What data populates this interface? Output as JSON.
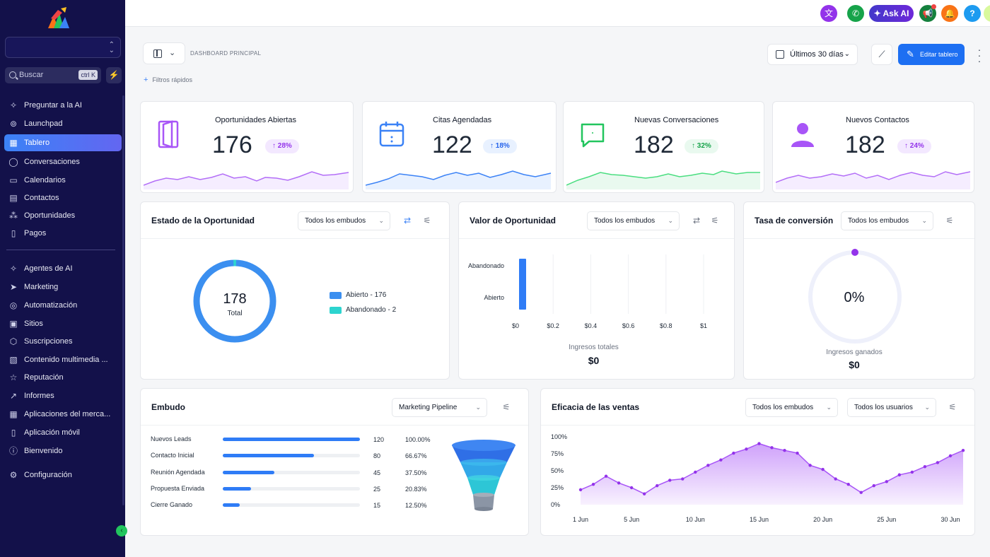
{
  "sidebar": {
    "location": "",
    "search_placeholder": "Buscar",
    "search_shortcut": "ctrl K",
    "items": [
      {
        "label": "Preguntar a la AI",
        "icon": "sparkle-icon"
      },
      {
        "label": "Launchpad",
        "icon": "launchpad-icon"
      },
      {
        "label": "Tablero",
        "icon": "dashboard-icon",
        "active": true
      },
      {
        "label": "Conversaciones",
        "icon": "chat-icon"
      },
      {
        "label": "Calendarios",
        "icon": "calendar-icon"
      },
      {
        "label": "Contactos",
        "icon": "contacts-icon"
      },
      {
        "label": "Oportunidades",
        "icon": "opportunities-icon"
      },
      {
        "label": "Pagos",
        "icon": "payments-icon"
      },
      {
        "label": "Agentes de AI",
        "icon": "ai-agents-icon"
      },
      {
        "label": "Marketing",
        "icon": "send-icon"
      },
      {
        "label": "Automatización",
        "icon": "automation-icon"
      },
      {
        "label": "Sitios",
        "icon": "sites-icon"
      },
      {
        "label": "Suscripciones",
        "icon": "subscriptions-icon"
      },
      {
        "label": "Contenido multimedia ...",
        "icon": "media-icon"
      },
      {
        "label": "Reputación",
        "icon": "star-icon"
      },
      {
        "label": "Informes",
        "icon": "reports-icon"
      },
      {
        "label": "Aplicaciones del merca...",
        "icon": "apps-icon"
      },
      {
        "label": "Aplicación móvil",
        "icon": "mobile-icon"
      },
      {
        "label": "Bienvenido",
        "icon": "info-icon"
      },
      {
        "label": "Configuración",
        "icon": "gear-icon"
      }
    ]
  },
  "topbar": {
    "ask_ai": "Ask AI",
    "help": "?"
  },
  "header": {
    "dashboard_title": "DASHBOARD PRINCIPAL",
    "quick_filters": "Filtros rápidos",
    "date_range": "Últimos 30 días",
    "edit_label": "Editar tablero"
  },
  "kpis": [
    {
      "label": "Oportunidades Abiertas",
      "value": "176",
      "change": "28%",
      "color": "#a855f7"
    },
    {
      "label": "Citas Agendadas",
      "value": "122",
      "change": "18%",
      "color": "#3b82f6"
    },
    {
      "label": "Nuevas Conversaciones",
      "value": "182",
      "change": "32%",
      "color": "#22c55e"
    },
    {
      "label": "Nuevos Contactos",
      "value": "182",
      "change": "24%",
      "color": "#a855f7"
    }
  ],
  "opportunity_status": {
    "title": "Estado de la Oportunidad",
    "filter": "Todos los embudos",
    "total_value": "178",
    "total_label": "Total",
    "legend": [
      {
        "label": "Abierto - 176",
        "color": "#3b8ff0"
      },
      {
        "label": "Abandonado - 2",
        "color": "#2dd4cf"
      }
    ]
  },
  "opportunity_value": {
    "title": "Valor de Oportunidad",
    "filter": "Todos los embudos",
    "total_label": "Ingresos totales",
    "total_value": "$0"
  },
  "conversion_rate": {
    "title": "Tasa de conversión",
    "filter": "Todos los embudos",
    "value": "0%",
    "earned_label": "Ingresos ganados",
    "earned_value": "$0"
  },
  "funnel": {
    "title": "Embudo",
    "filter": "Marketing Pipeline",
    "stages": [
      {
        "name": "Nuevos Leads",
        "count": "120",
        "pct": "100.00%",
        "fraction": 1.0
      },
      {
        "name": "Contacto Inicial",
        "count": "80",
        "pct": "66.67%",
        "fraction": 0.6667
      },
      {
        "name": "Reunión Agendada",
        "count": "45",
        "pct": "37.50%",
        "fraction": 0.375
      },
      {
        "name": "Propuesta Enviada",
        "count": "25",
        "pct": "20.83%",
        "fraction": 0.2083
      },
      {
        "name": "Cierre Ganado",
        "count": "15",
        "pct": "12.50%",
        "fraction": 0.125
      }
    ]
  },
  "sales_efficiency": {
    "title": "Eficacia de las ventas",
    "filter_pipelines": "Todos los embudos",
    "filter_users": "Todos los usuarios"
  },
  "chart_data": [
    {
      "type": "bar",
      "orientation": "horizontal",
      "categories": [
        "Abandonado",
        "Abierto"
      ],
      "values": [
        0,
        0
      ],
      "xticks": [
        "$0",
        "$0.2",
        "$0.4",
        "$0.6",
        "$0.8",
        "$1"
      ],
      "xlim": [
        0,
        1
      ]
    },
    {
      "type": "area",
      "x": [
        "1 Jun",
        "2 Jun",
        "3 Jun",
        "4 Jun",
        "5 Jun",
        "6 Jun",
        "7 Jun",
        "8 Jun",
        "9 Jun",
        "10 Jun",
        "11 Jun",
        "12 Jun",
        "13 Jun",
        "14 Jun",
        "15 Jun",
        "16 Jun",
        "17 Jun",
        "18 Jun",
        "19 Jun",
        "20 Jun",
        "21 Jun",
        "22 Jun",
        "23 Jun",
        "24 Jun",
        "25 Jun",
        "26 Jun",
        "27 Jun",
        "28 Jun",
        "29 Jun",
        "30 Jun",
        "31 Jun"
      ],
      "xticks": [
        "1 Jun",
        "5 Jun",
        "10 Jun",
        "15 Jun",
        "20 Jun",
        "25 Jun",
        "30 Jun"
      ],
      "yticks": [
        "100%",
        "75%",
        "50%",
        "25%",
        "0%"
      ],
      "ylim": [
        0,
        100
      ],
      "values": [
        22,
        30,
        42,
        32,
        25,
        16,
        28,
        36,
        38,
        48,
        58,
        66,
        76,
        82,
        90,
        84,
        80,
        76,
        58,
        52,
        38,
        30,
        18,
        28,
        34,
        44,
        48,
        56,
        62,
        72,
        80
      ],
      "color": "#a855f7"
    }
  ]
}
